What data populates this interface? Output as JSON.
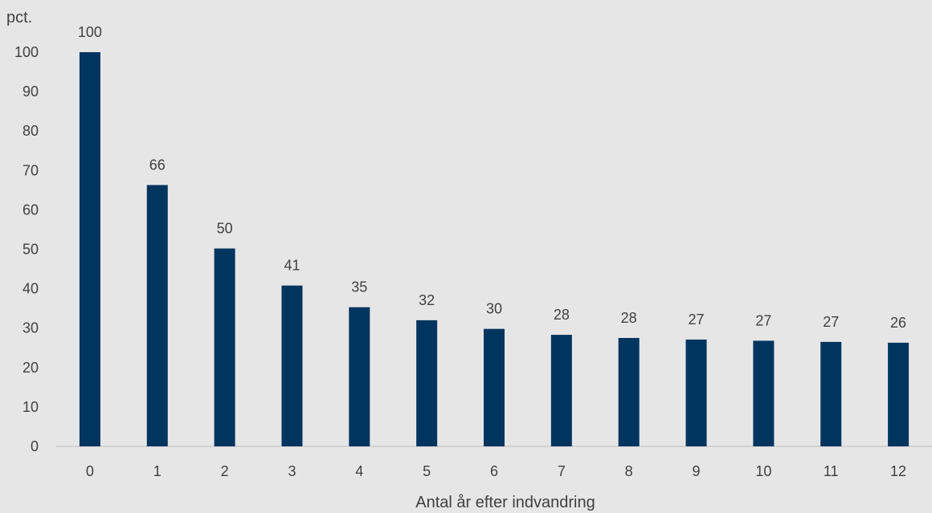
{
  "chart_data": {
    "type": "bar",
    "title": "",
    "ylabel": "pct.",
    "xlabel": "Antal år efter indvandring",
    "categories": [
      "0",
      "1",
      "2",
      "3",
      "4",
      "5",
      "6",
      "7",
      "8",
      "9",
      "10",
      "11",
      "12"
    ],
    "values": [
      100,
      66.3,
      50.2,
      40.8,
      35.3,
      32.0,
      29.8,
      28.3,
      27.5,
      27.1,
      26.8,
      26.5,
      26.3
    ],
    "data_labels": [
      "100",
      "66",
      "50",
      "41",
      "35",
      "32",
      "30",
      "28",
      "28",
      "27",
      "27",
      "27",
      "26"
    ],
    "ylim": [
      0,
      100
    ],
    "yticks": [
      0,
      10,
      20,
      30,
      40,
      50,
      60,
      70,
      80,
      90,
      100
    ],
    "grid": false,
    "legend": "none",
    "bar_color": "#00355f",
    "background": "#e7e6e6"
  }
}
